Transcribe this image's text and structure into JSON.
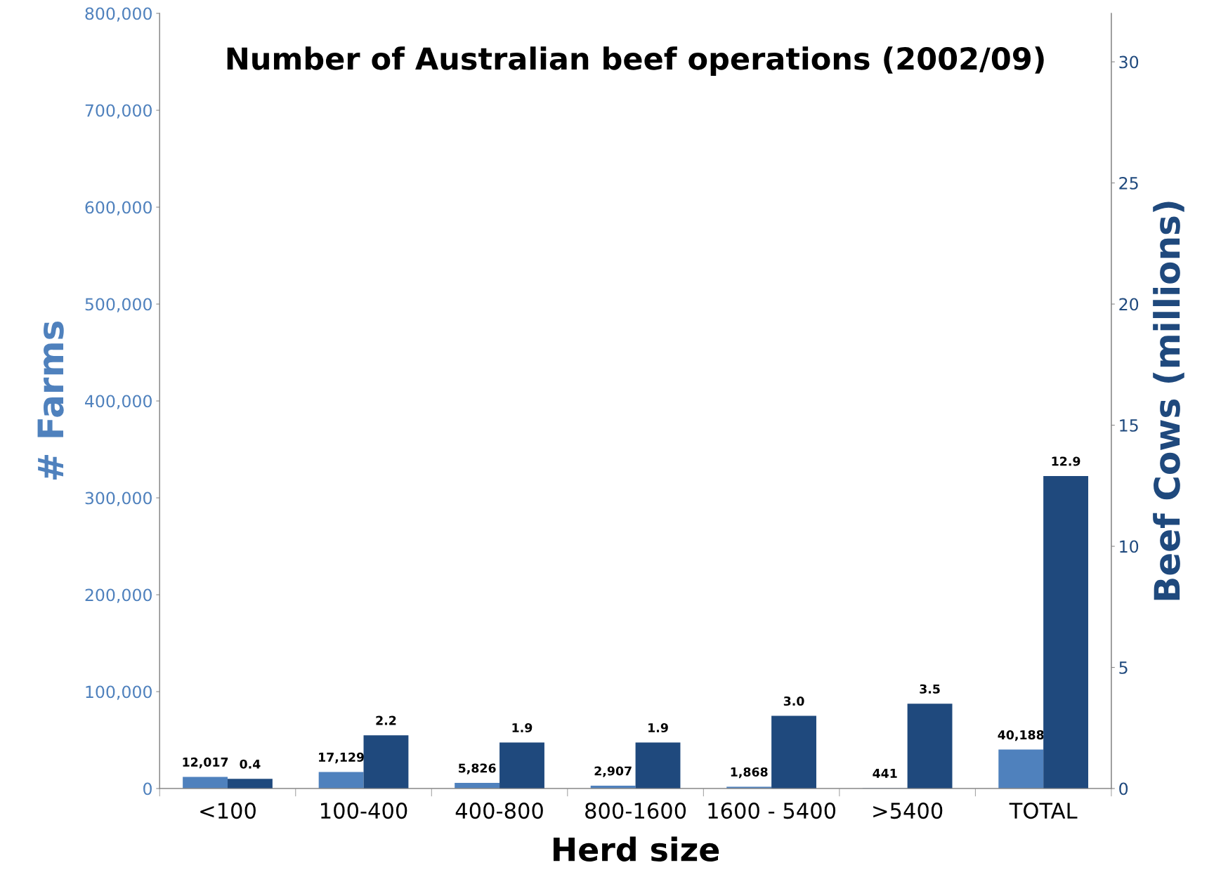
{
  "chart_data": {
    "type": "bar",
    "title": "Number of Australian beef operations (2002/09)",
    "xlabel": "Herd size",
    "ylabel": "# Farms",
    "y2label": "Beef Cows (millions)",
    "categories": [
      "<100",
      "100-400",
      "400-800",
      "800-1600",
      "1600 - 5400",
      ">5400",
      "TOTAL"
    ],
    "series": [
      {
        "color": "#4f81bd",
        "values": [
          12017,
          17129,
          5826,
          2907,
          1868,
          441,
          40188
        ],
        "value_labels": [
          "12,017",
          "17,129",
          "5,826",
          "2,907",
          "1,868",
          "441",
          "40,188"
        ]
      },
      {
        "color": "#1f497d",
        "axis": "y2",
        "values": [
          0.4,
          2.2,
          1.9,
          1.9,
          3.0,
          3.5,
          12.9
        ],
        "value_labels": [
          "0.4",
          "2.2",
          "1.9",
          "1.9",
          "3.0",
          "3.5",
          "12.9"
        ]
      }
    ],
    "ylim": [
      0,
      800000
    ],
    "yticks": [
      0,
      {
        "value": 100000,
        "label": "100,000"
      },
      {
        "value": 200000,
        "label": "200,000"
      },
      {
        "value": 300000,
        "label": "300,000"
      },
      {
        "value": 400000,
        "label": "400,000"
      },
      {
        "value": 500000,
        "label": "500,000"
      },
      {
        "value": 600000,
        "label": "600,000"
      },
      {
        "value": 700000,
        "label": "700,000"
      },
      {
        "value": 800000,
        "label": "800,000"
      }
    ],
    "y2lim": [
      0,
      32
    ],
    "y2ticks": [
      0,
      5,
      10,
      15,
      20,
      25,
      30
    ],
    "grid": false,
    "legend": false
  }
}
